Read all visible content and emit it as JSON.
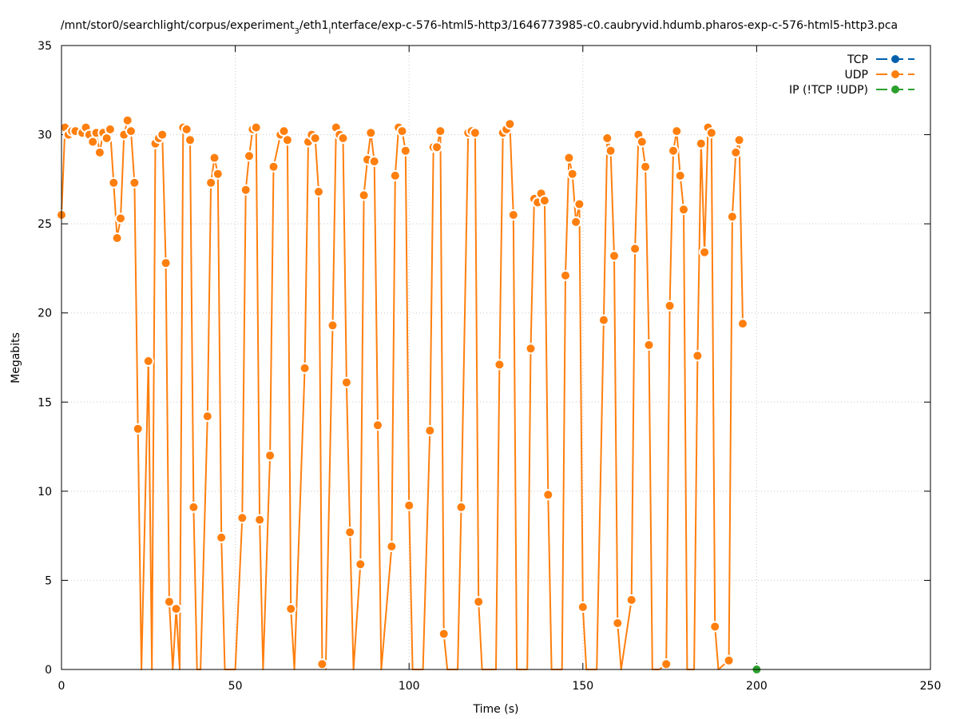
{
  "chart_data": {
    "type": "line",
    "title": "/mnt/stor0/searchlight/corpus/experiment_3/eth1_interface/exp-c-576-html5-http3/1646773985-c0.caubryvid.hdumb.pharos-exp-c-576-html5-http3.pcap",
    "title_parts": {
      "p1": "/mnt/stor0/searchlight/corpus/experiment",
      "sub1": "3",
      "p2": "/eth1",
      "sub2": "i",
      "p3": "nterface/exp-c-576-html5-http3/1646773985-c0.caubryvid.hdumb.pharos-exp-c-576-html5-http3.pca"
    },
    "xlabel": "Time (s)",
    "ylabel": "Megabits",
    "xlim": [
      0,
      250
    ],
    "ylim": [
      0,
      35
    ],
    "x_ticks": [
      0,
      50,
      100,
      150,
      200,
      250
    ],
    "y_ticks": [
      0,
      5,
      10,
      15,
      20,
      25,
      30,
      35
    ],
    "grid": true,
    "legend_position": "top-right",
    "series": [
      {
        "name": "TCP",
        "color": "#0060ad",
        "points": []
      },
      {
        "name": "UDP",
        "color": "#ff7f0e",
        "points": [
          [
            0,
            25.5
          ],
          [
            1,
            30.4
          ],
          [
            2,
            30.0
          ],
          [
            3,
            30.2
          ],
          [
            4,
            30.2
          ],
          [
            6,
            30.1
          ],
          [
            7,
            30.4
          ],
          [
            8,
            30.0
          ],
          [
            9,
            29.6
          ],
          [
            10,
            30.1
          ],
          [
            11,
            29.0
          ],
          [
            12,
            30.1
          ],
          [
            13,
            29.8
          ],
          [
            14,
            30.3
          ],
          [
            15,
            27.3
          ],
          [
            16,
            24.2
          ],
          [
            17,
            25.3
          ],
          [
            18,
            30.0
          ],
          [
            19,
            30.8
          ],
          [
            20,
            30.2
          ],
          [
            21,
            27.3
          ],
          [
            22,
            13.5
          ],
          [
            23,
            0
          ],
          [
            25,
            17.3
          ],
          [
            26,
            0
          ],
          [
            27,
            29.5
          ],
          [
            28,
            29.8
          ],
          [
            29,
            30.0
          ],
          [
            30,
            22.8
          ],
          [
            31,
            3.8
          ],
          [
            32,
            0
          ],
          [
            33,
            3.4
          ],
          [
            34,
            0
          ],
          [
            35,
            30.4
          ],
          [
            36,
            30.3
          ],
          [
            37,
            29.7
          ],
          [
            38,
            9.1
          ],
          [
            39,
            0
          ],
          [
            40,
            0
          ],
          [
            42,
            14.2
          ],
          [
            43,
            27.3
          ],
          [
            44,
            28.7
          ],
          [
            45,
            27.8
          ],
          [
            46,
            7.4
          ],
          [
            47,
            0
          ],
          [
            50,
            0
          ],
          [
            52,
            8.5
          ],
          [
            53,
            26.9
          ],
          [
            54,
            28.8
          ],
          [
            55,
            30.3
          ],
          [
            56,
            30.4
          ],
          [
            57,
            8.4
          ],
          [
            58,
            0
          ],
          [
            60,
            12.0
          ],
          [
            61,
            28.2
          ],
          [
            63,
            30.0
          ],
          [
            64,
            30.2
          ],
          [
            65,
            29.7
          ],
          [
            66,
            3.4
          ],
          [
            67,
            0
          ],
          [
            70,
            16.9
          ],
          [
            71,
            29.6
          ],
          [
            72,
            30.0
          ],
          [
            73,
            29.8
          ],
          [
            74,
            26.8
          ],
          [
            75,
            0.3
          ],
          [
            76,
            0
          ],
          [
            78,
            19.3
          ],
          [
            79,
            30.4
          ],
          [
            80,
            30.0
          ],
          [
            81,
            29.8
          ],
          [
            82,
            16.1
          ],
          [
            83,
            7.7
          ],
          [
            84,
            0
          ],
          [
            86,
            5.9
          ],
          [
            87,
            26.6
          ],
          [
            88,
            28.6
          ],
          [
            89,
            30.1
          ],
          [
            90,
            28.5
          ],
          [
            91,
            13.7
          ],
          [
            92,
            0
          ],
          [
            95,
            6.9
          ],
          [
            96,
            27.7
          ],
          [
            97,
            30.4
          ],
          [
            98,
            30.2
          ],
          [
            99,
            29.1
          ],
          [
            100,
            9.2
          ],
          [
            101,
            0
          ],
          [
            104,
            0
          ],
          [
            106,
            13.4
          ],
          [
            107,
            29.3
          ],
          [
            108,
            29.3
          ],
          [
            109,
            30.2
          ],
          [
            110,
            2.0
          ],
          [
            111,
            0
          ],
          [
            114,
            0
          ],
          [
            115,
            9.1
          ],
          [
            117,
            30.1
          ],
          [
            118,
            30.2
          ],
          [
            119,
            30.1
          ],
          [
            120,
            3.8
          ],
          [
            121,
            0
          ],
          [
            125,
            0
          ],
          [
            126,
            17.1
          ],
          [
            127,
            30.1
          ],
          [
            128,
            30.3
          ],
          [
            129,
            30.6
          ],
          [
            130,
            25.5
          ],
          [
            131,
            0
          ],
          [
            134,
            0
          ],
          [
            135,
            18.0
          ],
          [
            136,
            26.4
          ],
          [
            137,
            26.2
          ],
          [
            138,
            26.7
          ],
          [
            139,
            26.3
          ],
          [
            140,
            9.8
          ],
          [
            141,
            0
          ],
          [
            144,
            0
          ],
          [
            145,
            22.1
          ],
          [
            146,
            28.7
          ],
          [
            147,
            27.8
          ],
          [
            148,
            25.1
          ],
          [
            149,
            26.1
          ],
          [
            150,
            3.5
          ],
          [
            151,
            0
          ],
          [
            154,
            0
          ],
          [
            156,
            19.6
          ],
          [
            157,
            29.8
          ],
          [
            158,
            29.1
          ],
          [
            159,
            23.2
          ],
          [
            160,
            2.6
          ],
          [
            161,
            0
          ],
          [
            164,
            3.9
          ],
          [
            165,
            23.6
          ],
          [
            166,
            30.0
          ],
          [
            167,
            29.6
          ],
          [
            168,
            28.2
          ],
          [
            169,
            18.2
          ],
          [
            170,
            0
          ],
          [
            172,
            0
          ],
          [
            174,
            0.3
          ],
          [
            175,
            20.4
          ],
          [
            176,
            29.1
          ],
          [
            177,
            30.2
          ],
          [
            178,
            27.7
          ],
          [
            179,
            25.8
          ],
          [
            180,
            0
          ],
          [
            182,
            0
          ],
          [
            183,
            17.6
          ],
          [
            184,
            29.5
          ],
          [
            185,
            23.4
          ],
          [
            186,
            30.4
          ],
          [
            187,
            30.1
          ],
          [
            188,
            2.4
          ],
          [
            189,
            0
          ],
          [
            192,
            0.5
          ],
          [
            193,
            25.4
          ],
          [
            194,
            29.0
          ],
          [
            195,
            29.7
          ],
          [
            196,
            19.4
          ]
        ]
      },
      {
        "name": "IP (!TCP  !UDP)",
        "color": "#2ca02c",
        "points": [
          [
            200,
            0
          ]
        ]
      }
    ]
  }
}
